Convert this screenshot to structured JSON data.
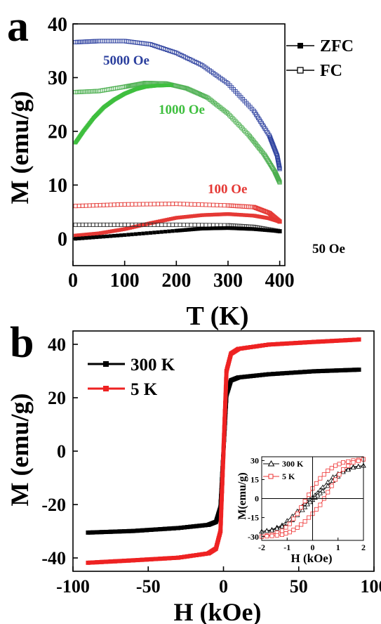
{
  "chart_data": [
    {
      "panel": "a",
      "type": "scatter",
      "xlabel": "T (K)",
      "ylabel": "M (emu/g)",
      "xlim": [
        0,
        410
      ],
      "ylim": [
        -5,
        40
      ],
      "xticks": [
        "0",
        "100",
        "200",
        "300",
        "400"
      ],
      "yticks": [
        "0",
        "10",
        "20",
        "30",
        "40"
      ],
      "xtick_values": [
        0,
        100,
        200,
        300,
        400
      ],
      "ytick_values": [
        0,
        10,
        20,
        30,
        40
      ],
      "legend": {
        "position": "top-right",
        "entries": [
          {
            "label": "ZFC",
            "marker": "filled-square"
          },
          {
            "label": "FC",
            "marker": "open-square"
          }
        ]
      },
      "series": [
        {
          "name": "5000 Oe",
          "mode": "FC",
          "color": "#2b3f9e",
          "marker": "open-square",
          "x": [
            5,
            50,
            100,
            150,
            200,
            250,
            300,
            350,
            380,
            395,
            400
          ],
          "y": [
            36.6,
            36.8,
            36.8,
            36.2,
            34.6,
            32.3,
            28.9,
            23.8,
            19.2,
            15.5,
            13.0
          ]
        },
        {
          "name": "1000 Oe",
          "mode": "FC",
          "color": "#4caf50",
          "marker": "open-square",
          "x": [
            5,
            50,
            100,
            140,
            180,
            220,
            260,
            300,
            340,
            370,
            390,
            400
          ],
          "y": [
            27.3,
            27.5,
            28.3,
            29.0,
            28.9,
            28.0,
            26.3,
            23.3,
            19.3,
            15.7,
            12.6,
            10.5
          ]
        },
        {
          "name": "1000 Oe",
          "mode": "ZFC",
          "color": "#3fbf3f",
          "marker": "filled-square",
          "x": [
            5,
            20,
            40,
            60,
            80,
            100,
            120,
            140,
            160,
            190
          ],
          "y": [
            17.9,
            20.0,
            22.5,
            24.5,
            25.9,
            27.0,
            27.8,
            28.3,
            28.5,
            28.6
          ]
        },
        {
          "name": "100 Oe",
          "mode": "FC",
          "color": "#e53935",
          "marker": "open-square",
          "x": [
            5,
            100,
            200,
            300,
            350,
            380,
            400
          ],
          "y": [
            6.1,
            6.4,
            6.5,
            6.2,
            5.9,
            4.8,
            3.2
          ]
        },
        {
          "name": "100 Oe",
          "mode": "ZFC",
          "color": "#e53935",
          "marker": "filled-square",
          "x": [
            5,
            50,
            100,
            150,
            200,
            250,
            300,
            350,
            380,
            400
          ],
          "y": [
            0.6,
            1.0,
            1.8,
            2.9,
            3.9,
            4.4,
            4.6,
            4.3,
            3.8,
            3.2
          ]
        },
        {
          "name": "50 Oe",
          "mode": "FC",
          "color": "#333333",
          "marker": "open-square",
          "x": [
            5,
            100,
            200,
            300,
            350,
            400
          ],
          "y": [
            2.6,
            2.6,
            2.6,
            2.5,
            2.2,
            1.4
          ]
        },
        {
          "name": "50 Oe",
          "mode": "ZFC",
          "color": "#000000",
          "marker": "filled-square",
          "x": [
            5,
            100,
            200,
            250,
            300,
            350,
            400
          ],
          "y": [
            0.0,
            0.7,
            1.5,
            1.9,
            2.0,
            1.8,
            1.4
          ]
        }
      ],
      "annotations": [
        {
          "text": "5000 Oe",
          "color": "#2b3f9e"
        },
        {
          "text": "1000 Oe",
          "color": "#3fbf3f"
        },
        {
          "text": "100 Oe",
          "color": "#e53935"
        },
        {
          "text": "50 Oe",
          "color": "#000000"
        }
      ]
    },
    {
      "panel": "b",
      "type": "line",
      "xlabel": "H (kOe)",
      "ylabel": "M (emu/g)",
      "xlim": [
        -100,
        100
      ],
      "ylim": [
        -45,
        45
      ],
      "xticks": [
        "-100",
        "-50",
        "0",
        "50",
        "100"
      ],
      "yticks": [
        "-40",
        "-20",
        "0",
        "20",
        "40"
      ],
      "xtick_values": [
        -100,
        -50,
        0,
        50,
        100
      ],
      "ytick_values": [
        -40,
        -20,
        0,
        20,
        40
      ],
      "legend": {
        "position": "top-left",
        "entries": [
          {
            "label": "300 K",
            "color": "#000000"
          },
          {
            "label": "5 K",
            "color": "#ee2222"
          }
        ]
      },
      "series": [
        {
          "name": "300 K",
          "color": "#000000",
          "x": [
            -90,
            -60,
            -30,
            -10,
            -5,
            -2,
            0,
            2,
            5,
            10,
            30,
            60,
            90
          ],
          "y": [
            -30.5,
            -29.9,
            -28.8,
            -27.6,
            -26.5,
            -21.0,
            0,
            21.0,
            26.5,
            27.6,
            28.8,
            29.9,
            30.5
          ]
        },
        {
          "name": "5 K",
          "color": "#ee2222",
          "x": [
            -90,
            -60,
            -30,
            -10,
            -5,
            -2,
            0,
            2,
            5,
            10,
            30,
            60,
            90
          ],
          "y": [
            -41.8,
            -40.9,
            -39.9,
            -38.3,
            -36.5,
            -30.0,
            0,
            30.0,
            36.5,
            38.3,
            39.9,
            40.9,
            41.8
          ]
        }
      ]
    },
    {
      "panel": "b-inset",
      "type": "line",
      "xlabel": "H (kOe)",
      "ylabel": "M(emu/g)",
      "xlim": [
        -2,
        2
      ],
      "ylim": [
        -33,
        33
      ],
      "xticks": [
        "-2",
        "-1",
        "0",
        "1",
        "2"
      ],
      "yticks": [
        "-30",
        "-15",
        "0",
        "15",
        "30"
      ],
      "xtick_values": [
        -2,
        -1,
        0,
        1,
        2
      ],
      "ytick_values": [
        -30,
        -15,
        0,
        15,
        30
      ],
      "legend": {
        "position": "top-left",
        "entries": [
          {
            "label": "300 K",
            "color": "#000000",
            "marker": "open-triangle"
          },
          {
            "label": "5 K",
            "color": "#ee3333",
            "marker": "open-square"
          }
        ]
      },
      "series": [
        {
          "name": "300 K",
          "color": "#000000",
          "marker": "open-triangle",
          "x": [
            -2,
            -1.6,
            -1.2,
            -0.8,
            -0.4,
            -0.2,
            0,
            0.2,
            0.4,
            0.8,
            1.2,
            1.6,
            2
          ],
          "y": [
            -26,
            -24.5,
            -21,
            -14,
            -6,
            -2.5,
            1,
            4.5,
            9,
            17,
            22,
            25,
            26
          ]
        },
        {
          "name": "300 K",
          "color": "#000000",
          "marker": "open-triangle",
          "x": [
            2,
            1.6,
            1.2,
            0.8,
            0.4,
            0.2,
            0,
            -0.2,
            -0.4,
            -0.8,
            -1.2,
            -1.6,
            -2
          ],
          "y": [
            26,
            24.5,
            21,
            14,
            6,
            2.5,
            -1,
            -4.5,
            -9,
            -17,
            -22,
            -25,
            -26
          ]
        },
        {
          "name": "5 K",
          "color": "#ee3333",
          "marker": "open-square",
          "x": [
            -2,
            -1.6,
            -1.2,
            -0.9,
            -0.6,
            -0.3,
            0,
            0.3,
            0.6,
            0.9,
            1.2,
            1.6,
            2
          ],
          "y": [
            -30,
            -28.5,
            -25.5,
            -20,
            -12,
            -2,
            8,
            16,
            22,
            26,
            28.5,
            30,
            31
          ]
        },
        {
          "name": "5 K",
          "color": "#ee3333",
          "marker": "open-square",
          "x": [
            2,
            1.6,
            1.2,
            0.9,
            0.6,
            0.3,
            0,
            -0.3,
            -0.6,
            -0.9,
            -1.2,
            -1.6,
            -2
          ],
          "y": [
            31,
            28.5,
            23,
            15,
            5,
            -5,
            -12,
            -18,
            -23,
            -26.5,
            -28.5,
            -29.5,
            -30
          ]
        }
      ]
    }
  ],
  "panel_labels": {
    "a": "a",
    "b": "b"
  }
}
